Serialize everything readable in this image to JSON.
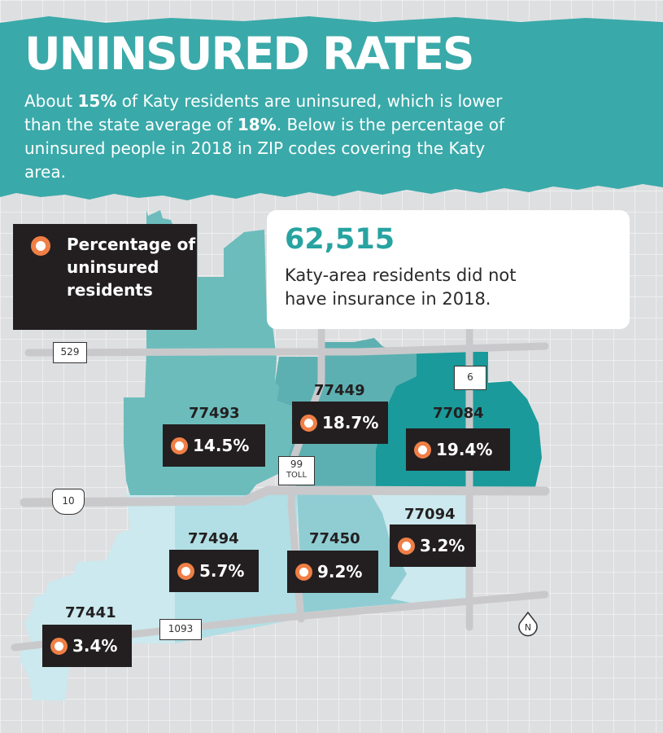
{
  "header": {
    "title": "UNINSURED RATES",
    "subtitle": {
      "p1": "About ",
      "katy_rate": "15%",
      "p2": " of Katy residents are uninsured, which is lower than the state average of ",
      "state_rate": "18%",
      "p3": ". Below is the percentage of uninsured people in 2018 in ZIP codes covering the Katy area."
    }
  },
  "legend": {
    "label": "Percentage of uninsured residents"
  },
  "stat": {
    "number": "62,515",
    "text": "Katy-area residents did not have insurance in 2018."
  },
  "zips": [
    {
      "zip": "77493",
      "rate": "14.5%"
    },
    {
      "zip": "77449",
      "rate": "18.7%"
    },
    {
      "zip": "77084",
      "rate": "19.4%"
    },
    {
      "zip": "77094",
      "rate": "3.2%"
    },
    {
      "zip": "77494",
      "rate": "5.7%"
    },
    {
      "zip": "77450",
      "rate": "9.2%"
    },
    {
      "zip": "77441",
      "rate": "3.4%"
    }
  ],
  "roads": {
    "r529": "529",
    "r6": "6",
    "r99": "99",
    "toll": "TOLL",
    "r10": "10",
    "r1093": "1093"
  },
  "compass": "N",
  "colors": {
    "banner": "#3aa9a9",
    "very_high": "#1a9a9a",
    "high": "#6cbcbc",
    "medium": "#8fcdd3",
    "low": "#b1dfe5",
    "lowest": "#cbe9ee",
    "marker": "#f07f46",
    "label_bg": "#231f20"
  }
}
